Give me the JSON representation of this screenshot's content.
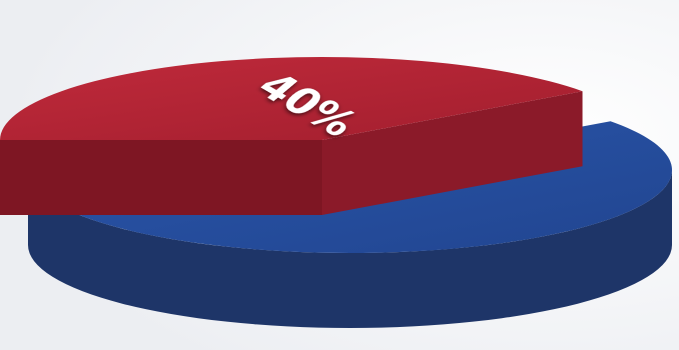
{
  "chart_data": {
    "type": "pie",
    "style": "3d-exploded",
    "title": "",
    "slices": [
      {
        "label": "40%",
        "value": 40,
        "color_top": "#b22334",
        "color_side": "#7e1623",
        "exploded": true
      },
      {
        "label": "",
        "value": 60,
        "color_top": "#254c9e",
        "color_side": "#1e3568",
        "exploded": false
      }
    ]
  }
}
